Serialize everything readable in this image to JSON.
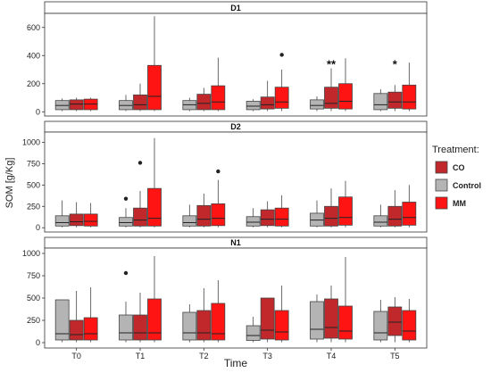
{
  "chart_data": {
    "type": "box",
    "ylabel": "SOM [g/Kg]",
    "xlabel": "Time",
    "categories": [
      "T0",
      "T1",
      "T2",
      "T3",
      "T4",
      "T5"
    ],
    "legend": {
      "title": "Treatment:",
      "position": "right",
      "entries": [
        {
          "name": "CO",
          "color": "#c0282b"
        },
        {
          "name": "Control",
          "color": "#b4b4b4"
        },
        {
          "name": "MM",
          "color": "#ff1414"
        }
      ]
    },
    "series_order": [
      "Control",
      "CO",
      "MM"
    ],
    "panels": [
      {
        "title": "D1",
        "ylim": [
          -30,
          700
        ],
        "yticks": [
          0,
          200,
          400,
          600
        ],
        "boxes": {
          "Control": [
            {
              "min": 5,
              "q1": 15,
              "median": 45,
              "q3": 80,
              "max": 95
            },
            {
              "min": 5,
              "q1": 15,
              "median": 45,
              "q3": 80,
              "max": 120
            },
            {
              "min": 5,
              "q1": 15,
              "median": 50,
              "q3": 80,
              "max": 100
            },
            {
              "min": 5,
              "q1": 15,
              "median": 40,
              "q3": 75,
              "max": 90
            },
            {
              "min": 5,
              "q1": 20,
              "median": 45,
              "q3": 85,
              "max": 110
            },
            {
              "min": 5,
              "q1": 15,
              "median": 50,
              "q3": 130,
              "max": 160
            }
          ],
          "CO": [
            {
              "min": 5,
              "q1": 15,
              "median": 55,
              "q3": 85,
              "max": 100
            },
            {
              "min": 5,
              "q1": 15,
              "median": 50,
              "q3": 120,
              "max": 200
            },
            {
              "min": 5,
              "q1": 15,
              "median": 60,
              "q3": 125,
              "max": 170
            },
            {
              "min": 5,
              "q1": 20,
              "median": 50,
              "q3": 105,
              "max": 220
            },
            {
              "min": 5,
              "q1": 25,
              "median": 60,
              "q3": 175,
              "max": 310
            },
            {
              "min": 5,
              "q1": 25,
              "median": 70,
              "q3": 140,
              "max": 190
            }
          ],
          "MM": [
            {
              "min": 5,
              "q1": 15,
              "median": 55,
              "q3": 90,
              "max": 100
            },
            {
              "min": 5,
              "q1": 15,
              "median": 110,
              "q3": 330,
              "max": 680
            },
            {
              "min": 5,
              "q1": 15,
              "median": 70,
              "q3": 185,
              "max": 385
            },
            {
              "min": 5,
              "q1": 25,
              "median": 70,
              "q3": 175,
              "max": 300
            },
            {
              "min": 5,
              "q1": 20,
              "median": 75,
              "q3": 200,
              "max": 380
            },
            {
              "min": 5,
              "q1": 20,
              "median": 70,
              "q3": 190,
              "max": 350
            }
          ]
        },
        "outliers": [
          {
            "category": "T3",
            "series": "MM",
            "value": 405
          }
        ],
        "annotations": [
          {
            "category": "T4",
            "text": "**",
            "value": 360
          },
          {
            "category": "T5",
            "text": "*",
            "value": 360
          }
        ]
      },
      {
        "title": "D2",
        "ylim": [
          -50,
          1120
        ],
        "yticks": [
          0,
          250,
          500,
          750,
          1000
        ],
        "boxes": {
          "Control": [
            {
              "min": 5,
              "q1": 20,
              "median": 60,
              "q3": 140,
              "max": 320
            },
            {
              "min": 5,
              "q1": 20,
              "median": 60,
              "q3": 120,
              "max": 230
            },
            {
              "min": 5,
              "q1": 20,
              "median": 60,
              "q3": 140,
              "max": 270
            },
            {
              "min": 5,
              "q1": 20,
              "median": 65,
              "q3": 130,
              "max": 230
            },
            {
              "min": 5,
              "q1": 20,
              "median": 90,
              "q3": 170,
              "max": 320
            },
            {
              "min": 5,
              "q1": 20,
              "median": 65,
              "q3": 140,
              "max": 270
            }
          ],
          "CO": [
            {
              "min": 5,
              "q1": 25,
              "median": 70,
              "q3": 160,
              "max": 300
            },
            {
              "min": 5,
              "q1": 20,
              "median": 90,
              "q3": 230,
              "max": 430
            },
            {
              "min": 5,
              "q1": 20,
              "median": 100,
              "q3": 260,
              "max": 400
            },
            {
              "min": 5,
              "q1": 25,
              "median": 100,
              "q3": 210,
              "max": 310
            },
            {
              "min": 5,
              "q1": 20,
              "median": 110,
              "q3": 250,
              "max": 460
            },
            {
              "min": 5,
              "q1": 20,
              "median": 100,
              "q3": 250,
              "max": 440
            }
          ],
          "MM": [
            {
              "min": 5,
              "q1": 20,
              "median": 75,
              "q3": 160,
              "max": 290
            },
            {
              "min": 5,
              "q1": 20,
              "median": 110,
              "q3": 460,
              "max": 1050
            },
            {
              "min": 5,
              "q1": 25,
              "median": 110,
              "q3": 280,
              "max": 560
            },
            {
              "min": 5,
              "q1": 20,
              "median": 100,
              "q3": 230,
              "max": 380
            },
            {
              "min": 5,
              "q1": 30,
              "median": 120,
              "q3": 360,
              "max": 550
            },
            {
              "min": 5,
              "q1": 30,
              "median": 120,
              "q3": 300,
              "max": 500
            }
          ]
        },
        "outliers": [
          {
            "category": "T1",
            "series": "Control",
            "value": 340
          },
          {
            "category": "T1",
            "series": "CO",
            "value": 760
          },
          {
            "category": "T2",
            "series": "MM",
            "value": 660
          }
        ],
        "annotations": []
      },
      {
        "title": "N1",
        "ylim": [
          -60,
          1060
        ],
        "yticks": [
          0,
          250,
          500,
          750,
          1000
        ],
        "boxes": {
          "Control": [
            {
              "min": 5,
              "q1": 30,
              "median": 100,
              "q3": 480,
              "max": 480
            },
            {
              "min": 5,
              "q1": 30,
              "median": 110,
              "q3": 310,
              "max": 460
            },
            {
              "min": 5,
              "q1": 30,
              "median": 110,
              "q3": 340,
              "max": 430
            },
            {
              "min": 5,
              "q1": 25,
              "median": 80,
              "q3": 190,
              "max": 290
            },
            {
              "min": 5,
              "q1": 40,
              "median": 150,
              "q3": 460,
              "max": 540
            },
            {
              "min": 5,
              "q1": 30,
              "median": 110,
              "q3": 350,
              "max": 480
            }
          ],
          "CO": [
            {
              "min": 5,
              "q1": 30,
              "median": 90,
              "q3": 250,
              "max": 580
            },
            {
              "min": 5,
              "q1": 30,
              "median": 110,
              "q3": 310,
              "max": 560
            },
            {
              "min": 5,
              "q1": 30,
              "median": 110,
              "q3": 360,
              "max": 610
            },
            {
              "min": 5,
              "q1": 40,
              "median": 140,
              "q3": 500,
              "max": 500
            },
            {
              "min": 5,
              "q1": 50,
              "median": 170,
              "q3": 490,
              "max": 640
            },
            {
              "min": 5,
              "q1": 80,
              "median": 230,
              "q3": 400,
              "max": 510
            }
          ],
          "MM": [
            {
              "min": 5,
              "q1": 30,
              "median": 100,
              "q3": 280,
              "max": 620
            },
            {
              "min": 5,
              "q1": 30,
              "median": 110,
              "q3": 490,
              "max": 970
            },
            {
              "min": 5,
              "q1": 30,
              "median": 100,
              "q3": 440,
              "max": 700
            },
            {
              "min": 5,
              "q1": 30,
              "median": 120,
              "q3": 360,
              "max": 640
            },
            {
              "min": 5,
              "q1": 40,
              "median": 130,
              "q3": 410,
              "max": 960
            },
            {
              "min": 5,
              "q1": 30,
              "median": 130,
              "q3": 360,
              "max": 490
            }
          ]
        },
        "outliers": [
          {
            "category": "T1",
            "series": "Control",
            "value": 780
          }
        ],
        "annotations": []
      }
    ]
  }
}
